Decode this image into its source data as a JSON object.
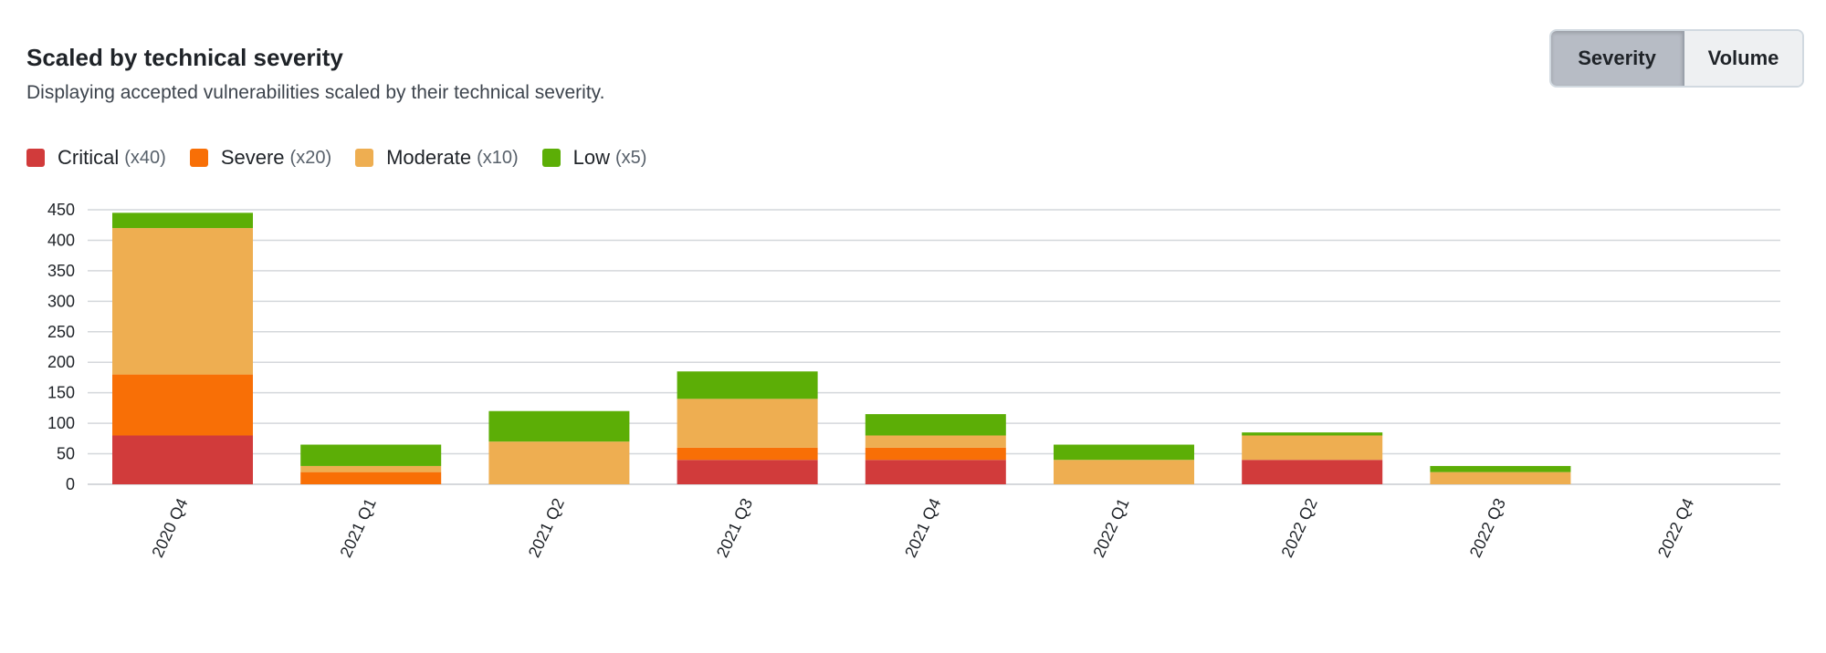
{
  "header": {
    "title": "Scaled by technical severity",
    "subtitle": "Displaying accepted vulnerabilities scaled by their technical severity."
  },
  "toggle": {
    "severity_label": "Severity",
    "volume_label": "Volume",
    "selected": "Severity"
  },
  "legend": [
    {
      "label": "Critical",
      "multiplier": "(x40)",
      "color": "#d13b3b"
    },
    {
      "label": "Severe",
      "multiplier": "(x20)",
      "color": "#f86f06"
    },
    {
      "label": "Moderate",
      "multiplier": "(x10)",
      "color": "#eeae51"
    },
    {
      "label": "Low",
      "multiplier": "(x5)",
      "color": "#5cae06"
    }
  ],
  "chart_data": {
    "type": "bar",
    "stacked": true,
    "categories": [
      "2020 Q4",
      "2021 Q1",
      "2021 Q2",
      "2021 Q3",
      "2021 Q4",
      "2022 Q1",
      "2022 Q2",
      "2022 Q3",
      "2022 Q4"
    ],
    "series": [
      {
        "name": "Critical",
        "color": "#d13b3b",
        "values": [
          80,
          0,
          0,
          40,
          40,
          0,
          40,
          0,
          0
        ]
      },
      {
        "name": "Severe",
        "color": "#f86f06",
        "values": [
          100,
          20,
          0,
          20,
          20,
          0,
          0,
          0,
          0
        ]
      },
      {
        "name": "Moderate",
        "color": "#eeae51",
        "values": [
          240,
          10,
          70,
          80,
          20,
          40,
          40,
          20,
          0
        ]
      },
      {
        "name": "Low",
        "color": "#5cae06",
        "values": [
          25,
          35,
          50,
          45,
          35,
          25,
          5,
          10,
          0
        ]
      }
    ],
    "yticks": [
      0,
      50,
      100,
      150,
      200,
      250,
      300,
      350,
      400,
      450
    ],
    "ylim": [
      0,
      450
    ],
    "grid": true
  }
}
